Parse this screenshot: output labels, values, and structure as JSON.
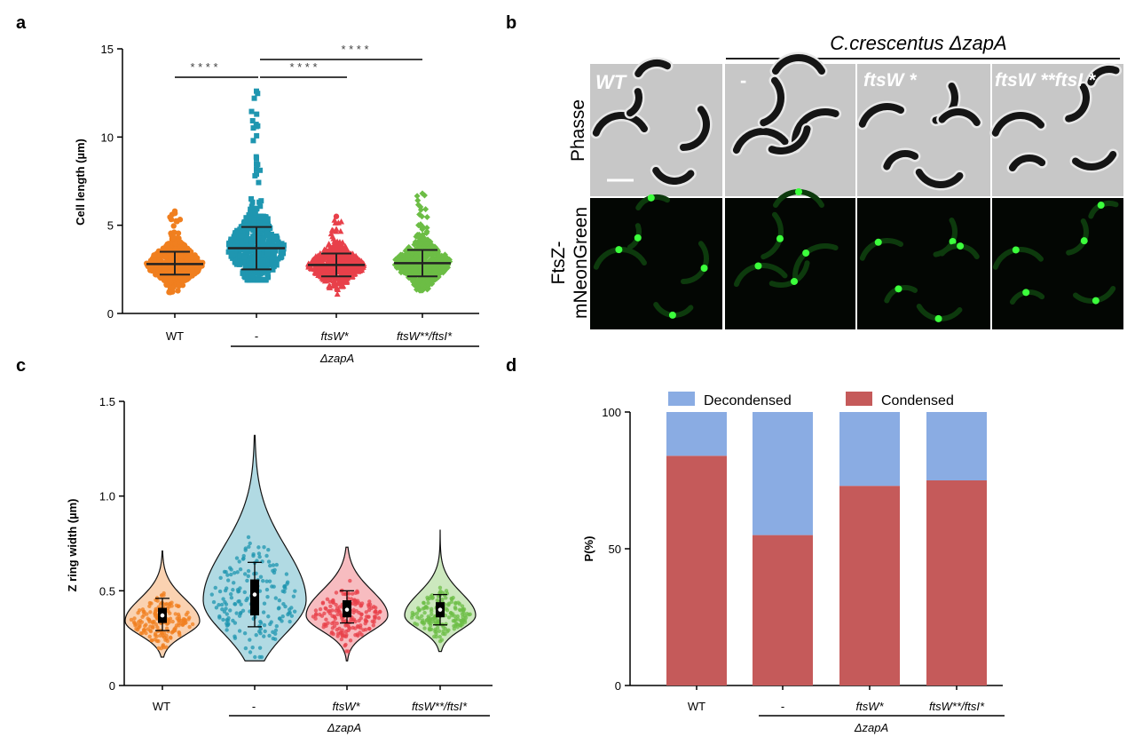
{
  "chart_data": [
    {
      "panel": "a",
      "type": "scatter",
      "ylabel": "Cell length (µm)",
      "ylim": [
        0,
        15
      ],
      "yticks": [
        "0",
        "5",
        "10",
        "15"
      ],
      "categories": [
        "WT",
        "-",
        "ftsW*",
        "ftsW**/ftsI*"
      ],
      "group_label": "ΔzapA",
      "significance": [
        "* * * *",
        "* * * *",
        "* * * *"
      ],
      "colors": [
        "#f07f1f",
        "#1f96b0",
        "#e8404a",
        "#6cbd45"
      ],
      "series": [
        {
          "category": "WT",
          "mean": 2.8,
          "sd_low": 2.2,
          "sd_high": 3.5,
          "min": 1.2,
          "max": 5.8
        },
        {
          "category": "-",
          "mean": 3.7,
          "sd_low": 2.5,
          "sd_high": 4.9,
          "min": 1.9,
          "max": 12.6
        },
        {
          "category": "ftsW*",
          "mean": 2.75,
          "sd_low": 2.1,
          "sd_high": 3.4,
          "min": 1.1,
          "max": 5.5
        },
        {
          "category": "ftsW**/ftsI*",
          "mean": 2.85,
          "sd_low": 2.1,
          "sd_high": 3.6,
          "min": 1.3,
          "max": 6.8
        }
      ]
    },
    {
      "panel": "c",
      "type": "violin",
      "ylabel": "Z ring width (µm)",
      "ylim": [
        0,
        1.5
      ],
      "yticks": [
        "0",
        "0.5",
        "1.0",
        "1.5"
      ],
      "categories": [
        "WT",
        "-",
        "ftsW*",
        "ftsW**/ftsI*"
      ],
      "group_label": "ΔzapA",
      "colors": [
        "#f07f1f",
        "#1f96b0",
        "#e8404a",
        "#6cbd45"
      ],
      "series": [
        {
          "category": "WT",
          "median": 0.37,
          "q1": 0.33,
          "q3": 0.41,
          "whisker_low": 0.29,
          "whisker_high": 0.46,
          "min": 0.15,
          "max": 0.71
        },
        {
          "category": "-",
          "median": 0.48,
          "q1": 0.37,
          "q3": 0.56,
          "whisker_low": 0.31,
          "whisker_high": 0.65,
          "min": 0.13,
          "max": 1.32
        },
        {
          "category": "ftsW*",
          "median": 0.4,
          "q1": 0.36,
          "q3": 0.45,
          "whisker_low": 0.33,
          "whisker_high": 0.5,
          "min": 0.13,
          "max": 0.73
        },
        {
          "category": "ftsW**/ftsI*",
          "median": 0.4,
          "q1": 0.36,
          "q3": 0.44,
          "whisker_low": 0.32,
          "whisker_high": 0.48,
          "min": 0.18,
          "max": 0.82
        }
      ]
    },
    {
      "panel": "d",
      "type": "bar",
      "stacked": true,
      "ylabel": "P(%)",
      "ylim": [
        0,
        100
      ],
      "yticks": [
        "0",
        "50",
        "100"
      ],
      "categories": [
        "WT",
        "-",
        "ftsW*",
        "ftsW**/ftsI*"
      ],
      "group_label": "ΔzapA",
      "legend_position": "top",
      "series": [
        {
          "name": "Condensed",
          "color": "#c55a5a",
          "values": [
            84,
            55,
            73,
            75
          ]
        },
        {
          "name": "Decondensed",
          "color": "#8aace3",
          "values": [
            16,
            45,
            27,
            25
          ]
        }
      ]
    }
  ],
  "panel_labels": {
    "a": "a",
    "b": "b",
    "c": "c",
    "d": "d"
  },
  "micrograph": {
    "header": "C.crescentus ΔzapA",
    "row_labels": [
      "Phasse",
      "FtsZ-",
      "mNeonGreen"
    ],
    "column_labels": [
      "WT",
      "-",
      "ftsW *",
      "ftsW **ftsI *"
    ]
  }
}
